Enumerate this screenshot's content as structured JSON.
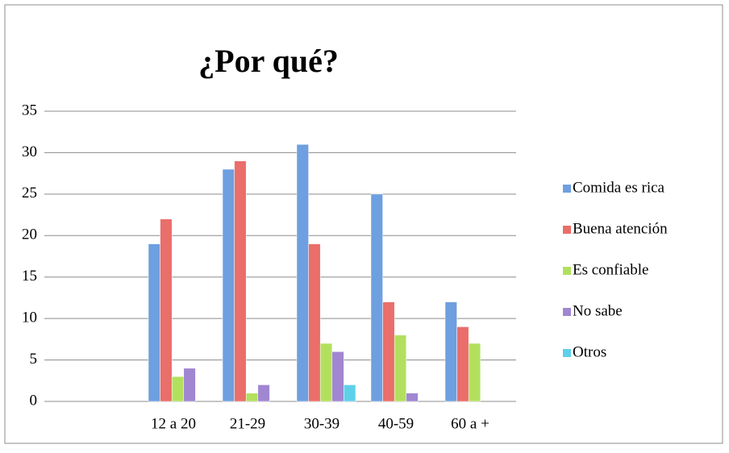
{
  "chart_data": {
    "type": "bar",
    "title": "¿Por qué?",
    "categories": [
      null,
      "12 a 20",
      "21-29",
      "30-39",
      "40-59",
      "60 a +"
    ],
    "series": [
      {
        "name": "Comida es rica",
        "color": "#6e9fe0",
        "values": [
          null,
          19,
          28,
          31,
          25,
          12
        ]
      },
      {
        "name": "Buena atención",
        "color": "#ea6e6a",
        "values": [
          null,
          22,
          29,
          19,
          12,
          9
        ]
      },
      {
        "name": "Es confiable",
        "color": "#b2e05e",
        "values": [
          null,
          3,
          1,
          7,
          8,
          7
        ]
      },
      {
        "name": "No sabe",
        "color": "#a186d2",
        "values": [
          null,
          4,
          2,
          6,
          1,
          0
        ]
      },
      {
        "name": "Otros",
        "color": "#5fd0ea",
        "values": [
          null,
          0,
          0,
          2,
          0,
          0
        ]
      }
    ],
    "ylim": [
      0,
      35
    ],
    "yticks": [
      0,
      5,
      10,
      15,
      20,
      25,
      30,
      35
    ],
    "grid": true,
    "legend": "right"
  }
}
